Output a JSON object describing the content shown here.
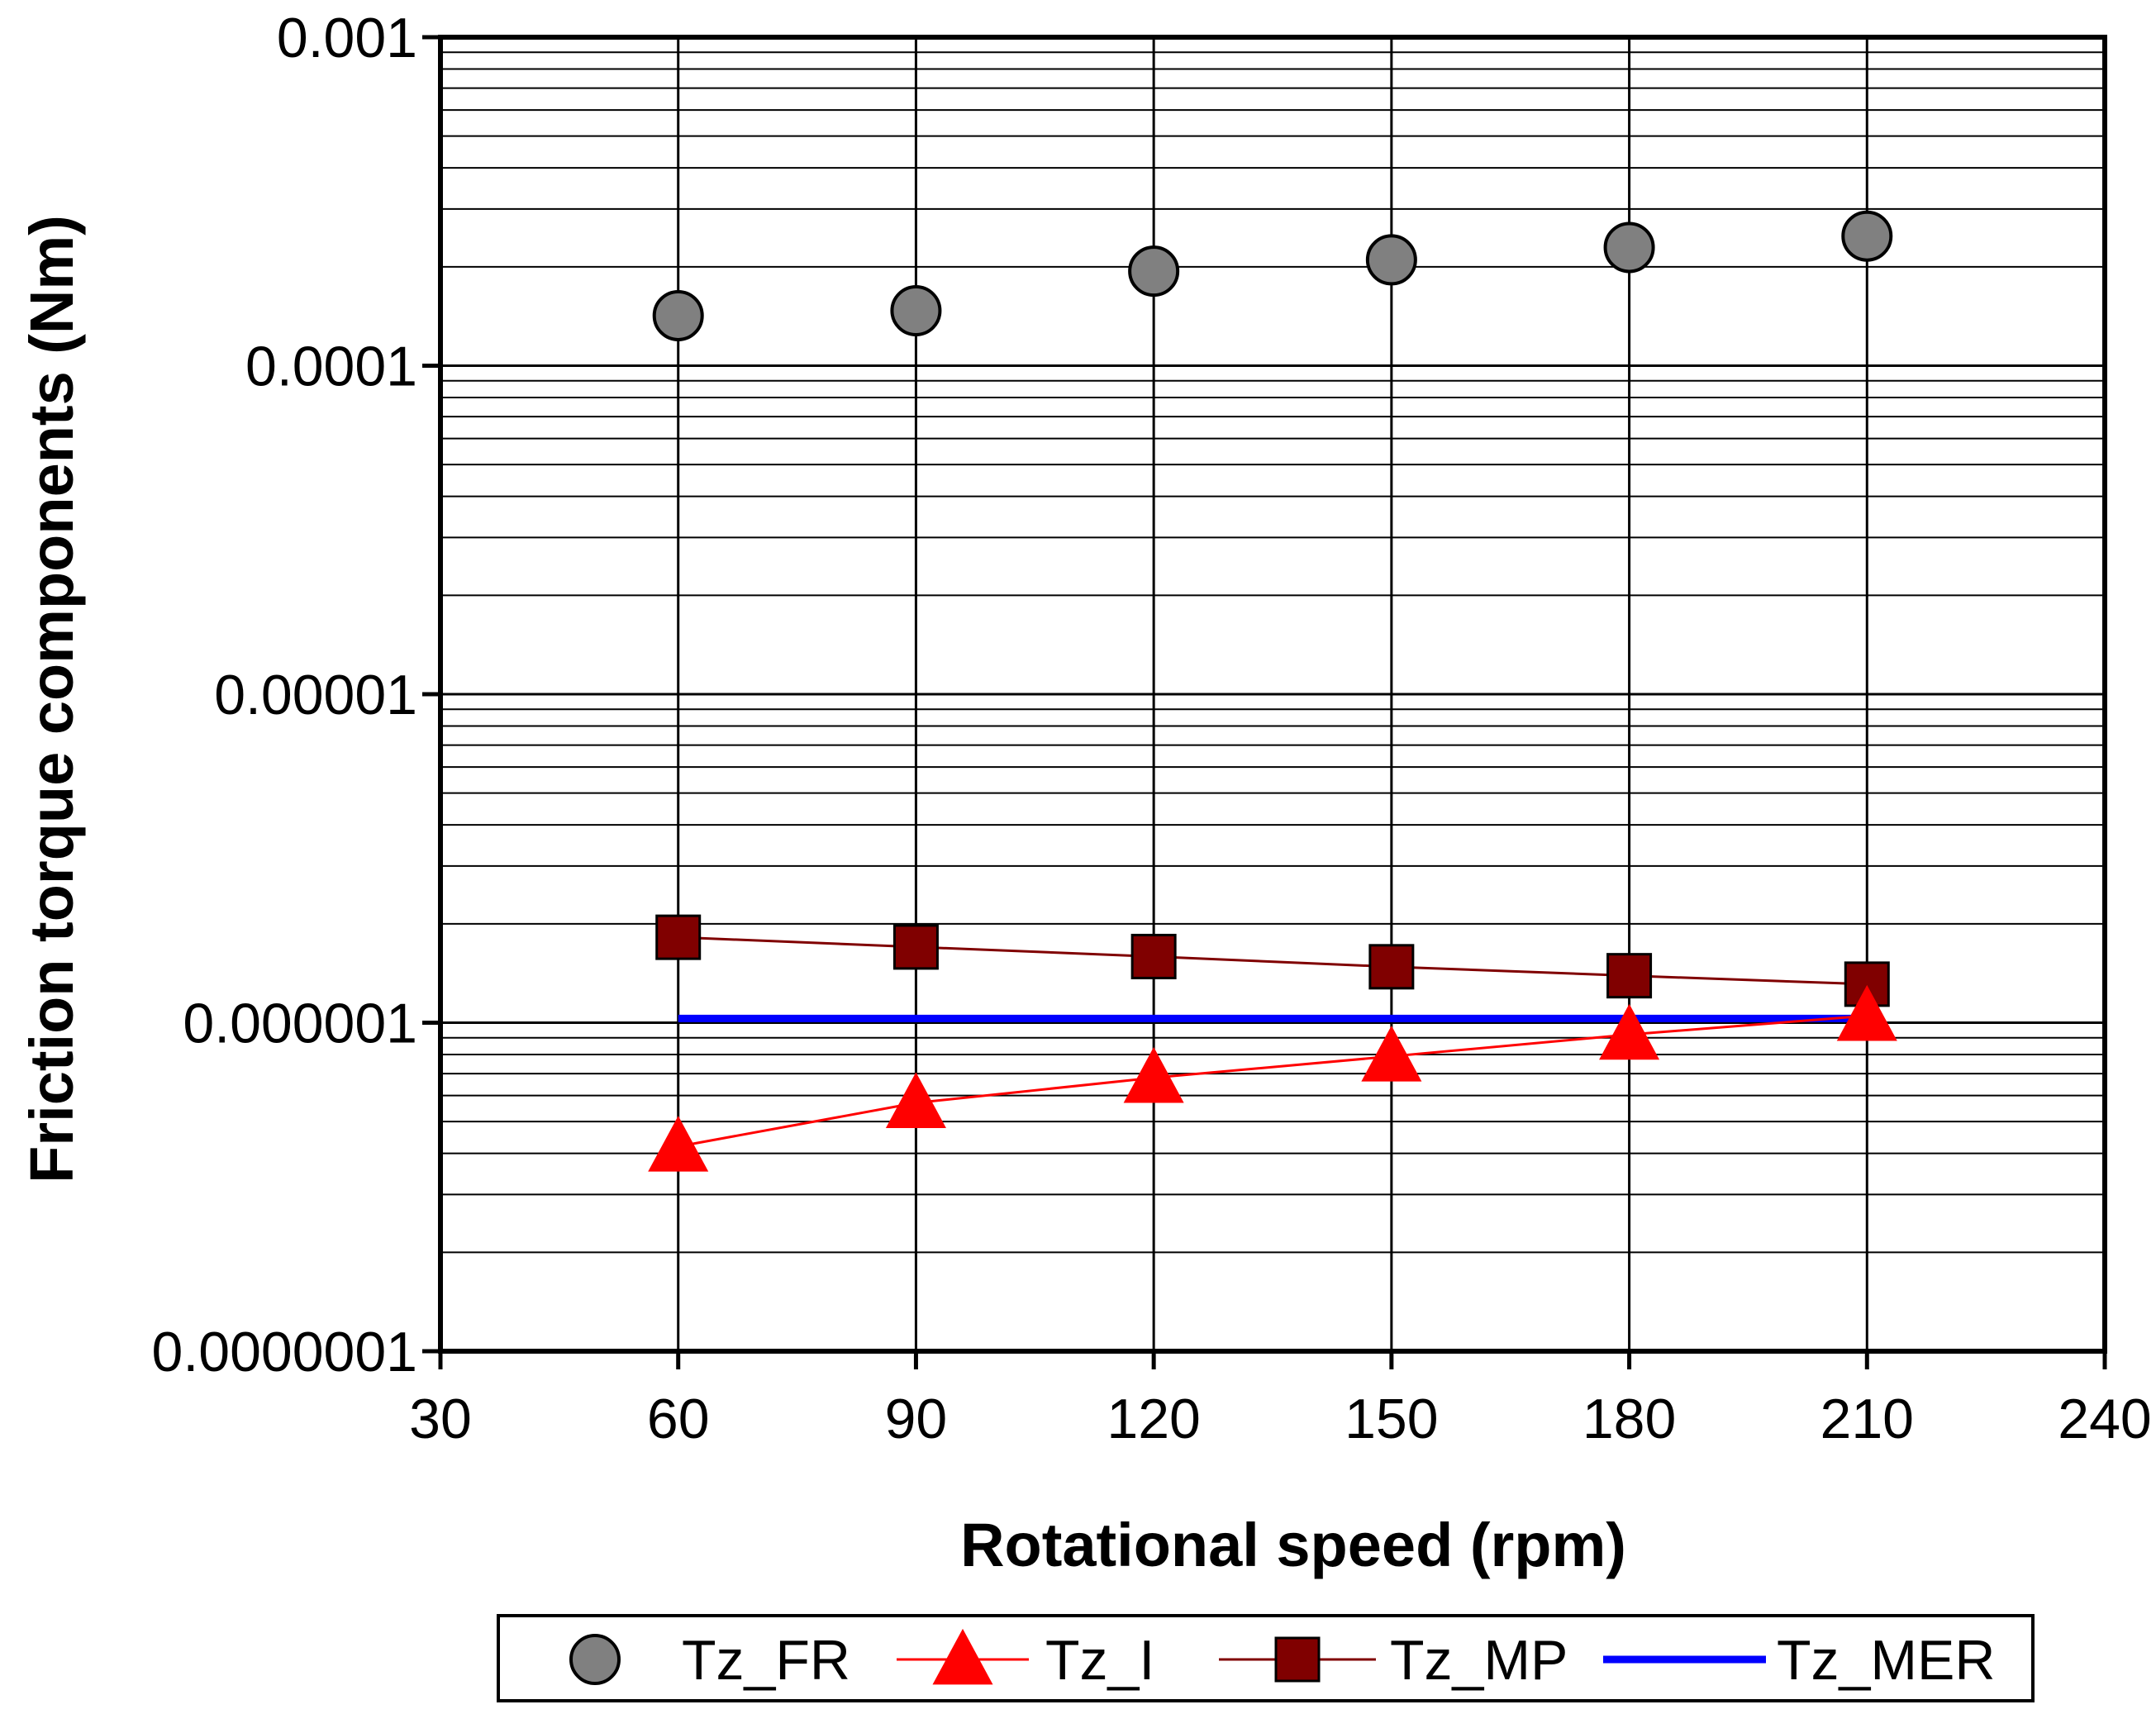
{
  "chart_data": {
    "type": "line",
    "title": "",
    "xlabel": "Rotational speed (rpm)",
    "ylabel": "Friction torque components (Nm)",
    "xlim": [
      30,
      240
    ],
    "xticks": [
      30,
      60,
      90,
      120,
      150,
      180,
      210,
      240
    ],
    "xtick_labels": [
      "30",
      "60",
      "90",
      "120",
      "150",
      "180",
      "210",
      "240"
    ],
    "yscale": "log",
    "ylim": [
      1e-07,
      0.001
    ],
    "yticks": [
      1e-07,
      1e-06,
      1e-05,
      0.0001,
      0.001
    ],
    "ytick_labels": [
      "0.0000001",
      "0.000001",
      "0.00001",
      "0.0001",
      "0.001"
    ],
    "grid": true,
    "legend_position": "bottom",
    "x": [
      60,
      90,
      120,
      150,
      180,
      210
    ],
    "series": [
      {
        "name": "Tz_FR",
        "marker": "circle",
        "line": false,
        "color": "#808080",
        "values": [
          0.000142,
          0.000147,
          0.000194,
          0.00021,
          0.000229,
          0.000248
        ]
      },
      {
        "name": "Tz_I",
        "marker": "triangle",
        "line": true,
        "color": "#ff0000",
        "values": [
          4.2e-07,
          5.7e-07,
          6.8e-07,
          7.9e-07,
          9.2e-07,
          1.05e-06
        ]
      },
      {
        "name": "Tz_MP",
        "marker": "square",
        "line": true,
        "color": "#800000",
        "values": [
          1.82e-06,
          1.7e-06,
          1.59e-06,
          1.48e-06,
          1.39e-06,
          1.31e-06
        ]
      },
      {
        "name": "Tz_MER",
        "marker": "none",
        "line": true,
        "color": "#0000ff",
        "values": [
          1.03e-06,
          1.03e-06,
          1.03e-06,
          1.03e-06,
          1.03e-06,
          1.03e-06
        ]
      }
    ]
  }
}
